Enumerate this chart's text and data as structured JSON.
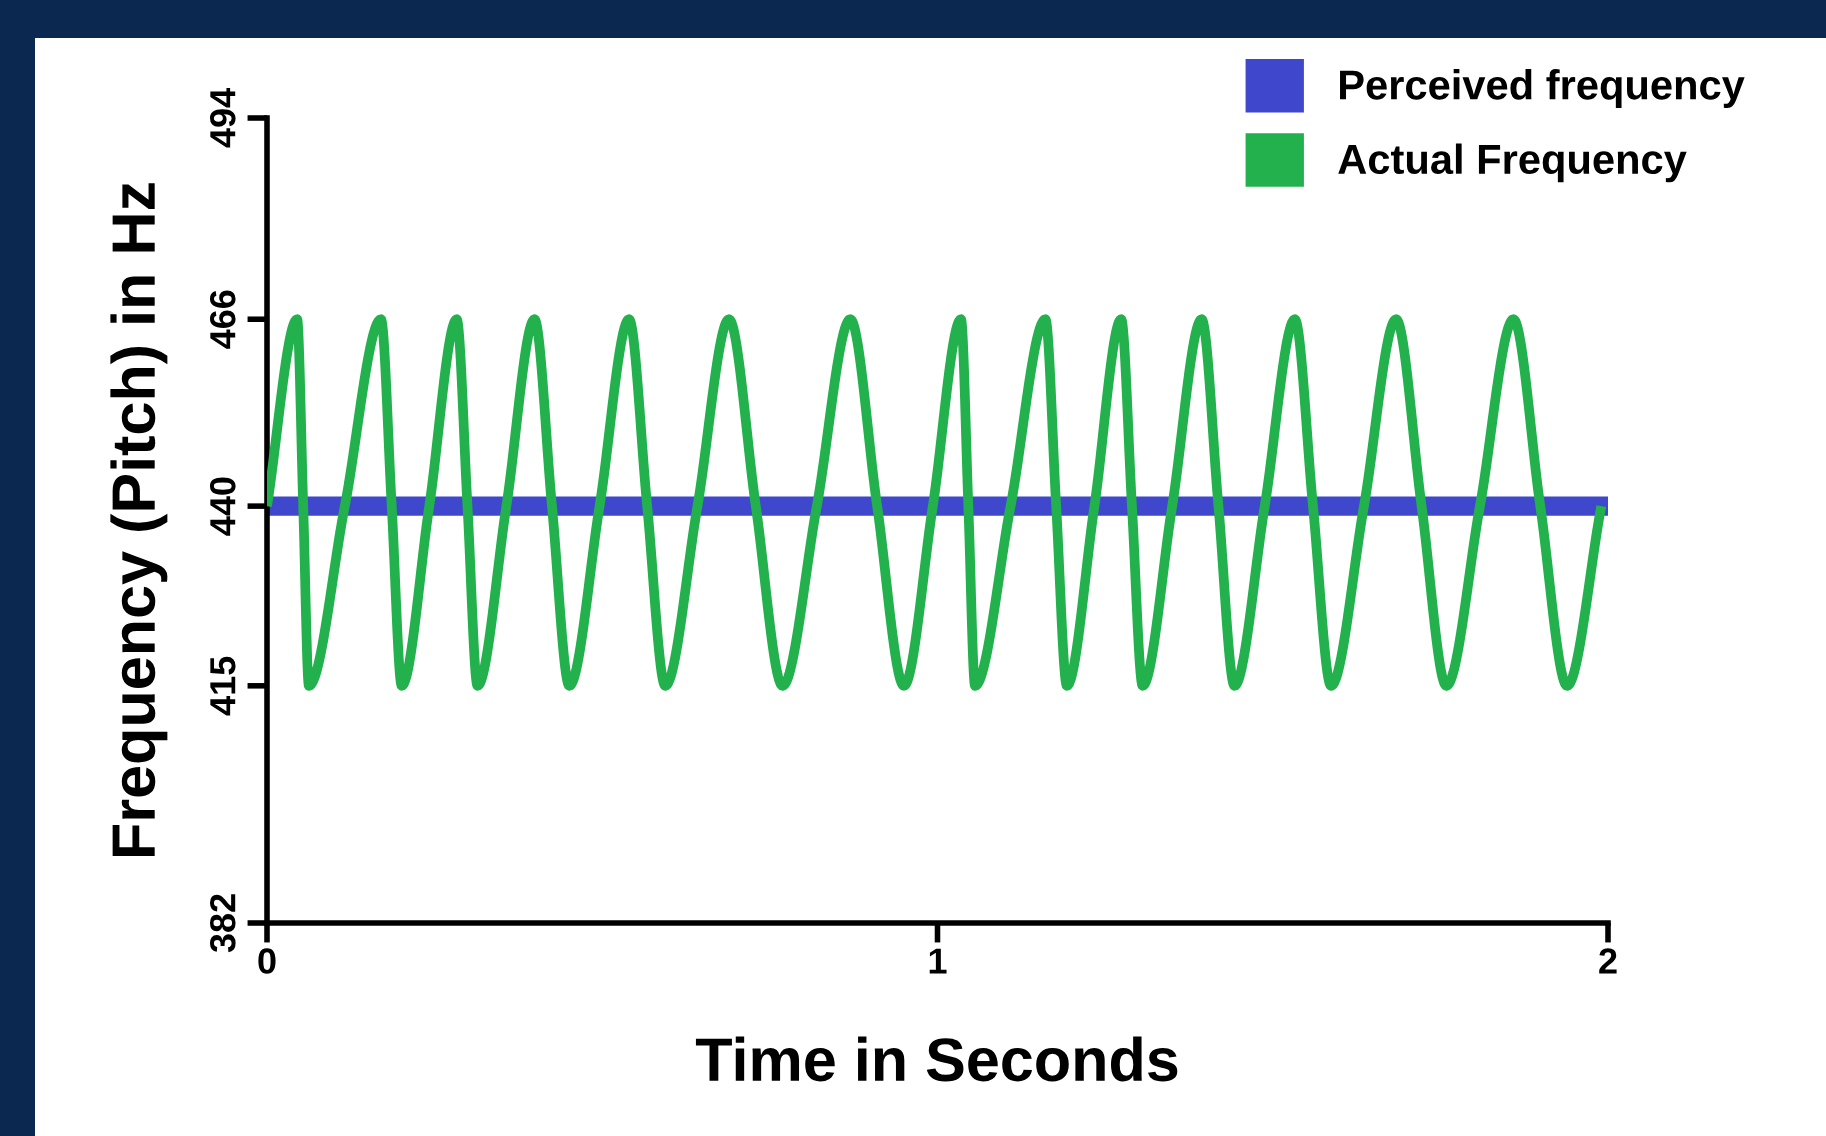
{
  "chart_data": {
    "type": "line",
    "xlabel": "Time in Seconds",
    "ylabel": "Frequency (Pitch) in Hz",
    "xlim": [
      0,
      2
    ],
    "xticks": [
      0,
      1,
      2
    ],
    "ylim": [
      382,
      494
    ],
    "yticks": [
      382,
      415,
      440,
      466,
      494
    ],
    "grid": false,
    "legend": "top right",
    "marker": "none",
    "line_style": "solid",
    "series": [
      {
        "name": "Perceived frequency",
        "color": "#3f48cc",
        "x": [
          0,
          2
        ],
        "values": [
          440,
          440
        ]
      },
      {
        "name": "Actual Frequency",
        "color": "#22b14c",
        "x": [
          0,
          0.045,
          0.054,
          0.0625,
          0.116,
          0.17,
          0.186,
          0.201,
          0.242,
          0.283,
          0.299,
          0.314,
          0.357,
          0.399,
          0.425,
          0.451,
          0.496,
          0.54,
          0.567,
          0.594,
          0.642,
          0.689,
          0.729,
          0.769,
          0.82,
          0.87,
          0.91,
          0.95,
          0.993,
          1.035,
          1.046,
          1.056,
          1.109,
          1.161,
          1.177,
          1.193,
          1.234,
          1.274,
          1.29,
          1.306,
          1.35,
          1.394,
          1.419,
          1.443,
          1.488,
          1.533,
          1.56,
          1.587,
          1.636,
          1.684,
          1.722,
          1.759,
          1.809,
          1.859,
          1.899,
          1.939,
          1.99
        ],
        "values": [
          440,
          466,
          440,
          415,
          440,
          466,
          440,
          415,
          440,
          466,
          440,
          415,
          440,
          466,
          440,
          415,
          440,
          466,
          440,
          415,
          440,
          466,
          440,
          415,
          440,
          466,
          440,
          415,
          440,
          466,
          440,
          415,
          440,
          466,
          440,
          415,
          440,
          466,
          440,
          415,
          440,
          466,
          440,
          415,
          440,
          466,
          440,
          415,
          440,
          466,
          440,
          415,
          440,
          466,
          440,
          415,
          440
        ]
      }
    ]
  }
}
